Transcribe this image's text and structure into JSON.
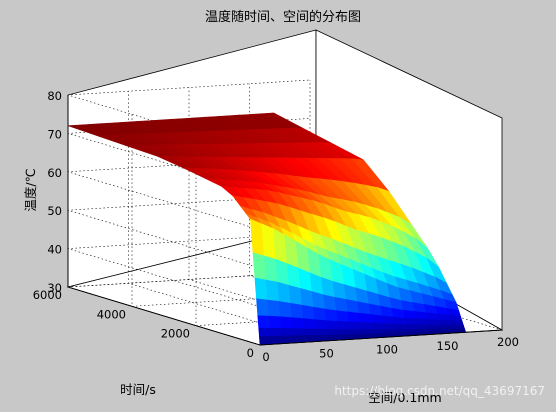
{
  "chart_data": {
    "type": "surface",
    "title": "温度随时间、空间的分布图",
    "xlabel": "空间/0.1mm",
    "ylabel": "时间/s",
    "zlabel": "温度/℃",
    "xlim": [
      0,
      200
    ],
    "ylim": [
      0,
      6000
    ],
    "zlim": [
      30,
      80
    ],
    "x_ticks": [
      "0",
      "50",
      "100",
      "150",
      "200"
    ],
    "y_ticks": [
      "0",
      "2000",
      "4000",
      "6000"
    ],
    "z_ticks": [
      "30",
      "40",
      "50",
      "60",
      "70",
      "80"
    ],
    "x_range": [
      0,
      170
    ],
    "y_range": [
      0,
      6000
    ],
    "colormap": "jet",
    "grid": true,
    "profiles": [
      {
        "t": 6000,
        "x": [
          0,
          20,
          40,
          60,
          80,
          100,
          120,
          140,
          160,
          170
        ],
        "temp": [
          72,
          72,
          72,
          72,
          72,
          72,
          72,
          72,
          72,
          72
        ]
      },
      {
        "t": 3000,
        "x": [
          0,
          20,
          40,
          60,
          80,
          100,
          120,
          140,
          160,
          170
        ],
        "temp": [
          71,
          70.5,
          70,
          69.5,
          69,
          68.5,
          68,
          67.5,
          67,
          66.5
        ]
      },
      {
        "t": 1000,
        "x": [
          0,
          20,
          40,
          60,
          80,
          100,
          120,
          140,
          160,
          170
        ],
        "temp": [
          68,
          67,
          66,
          64,
          62,
          59,
          57,
          54,
          50,
          47
        ]
      },
      {
        "t": 300,
        "x": [
          0,
          20,
          40,
          60,
          80,
          100,
          120,
          140,
          160,
          170
        ],
        "temp": [
          62,
          59,
          55,
          51,
          48,
          45,
          42,
          40,
          38,
          37
        ]
      },
      {
        "t": 0,
        "x": [
          0,
          20,
          40,
          60,
          80,
          100,
          120,
          140,
          160,
          170
        ],
        "temp": [
          30,
          30,
          30,
          30,
          30,
          30,
          30,
          30,
          30,
          30
        ]
      }
    ]
  },
  "watermark": "https://blog.csdn.net/qq_43697167"
}
